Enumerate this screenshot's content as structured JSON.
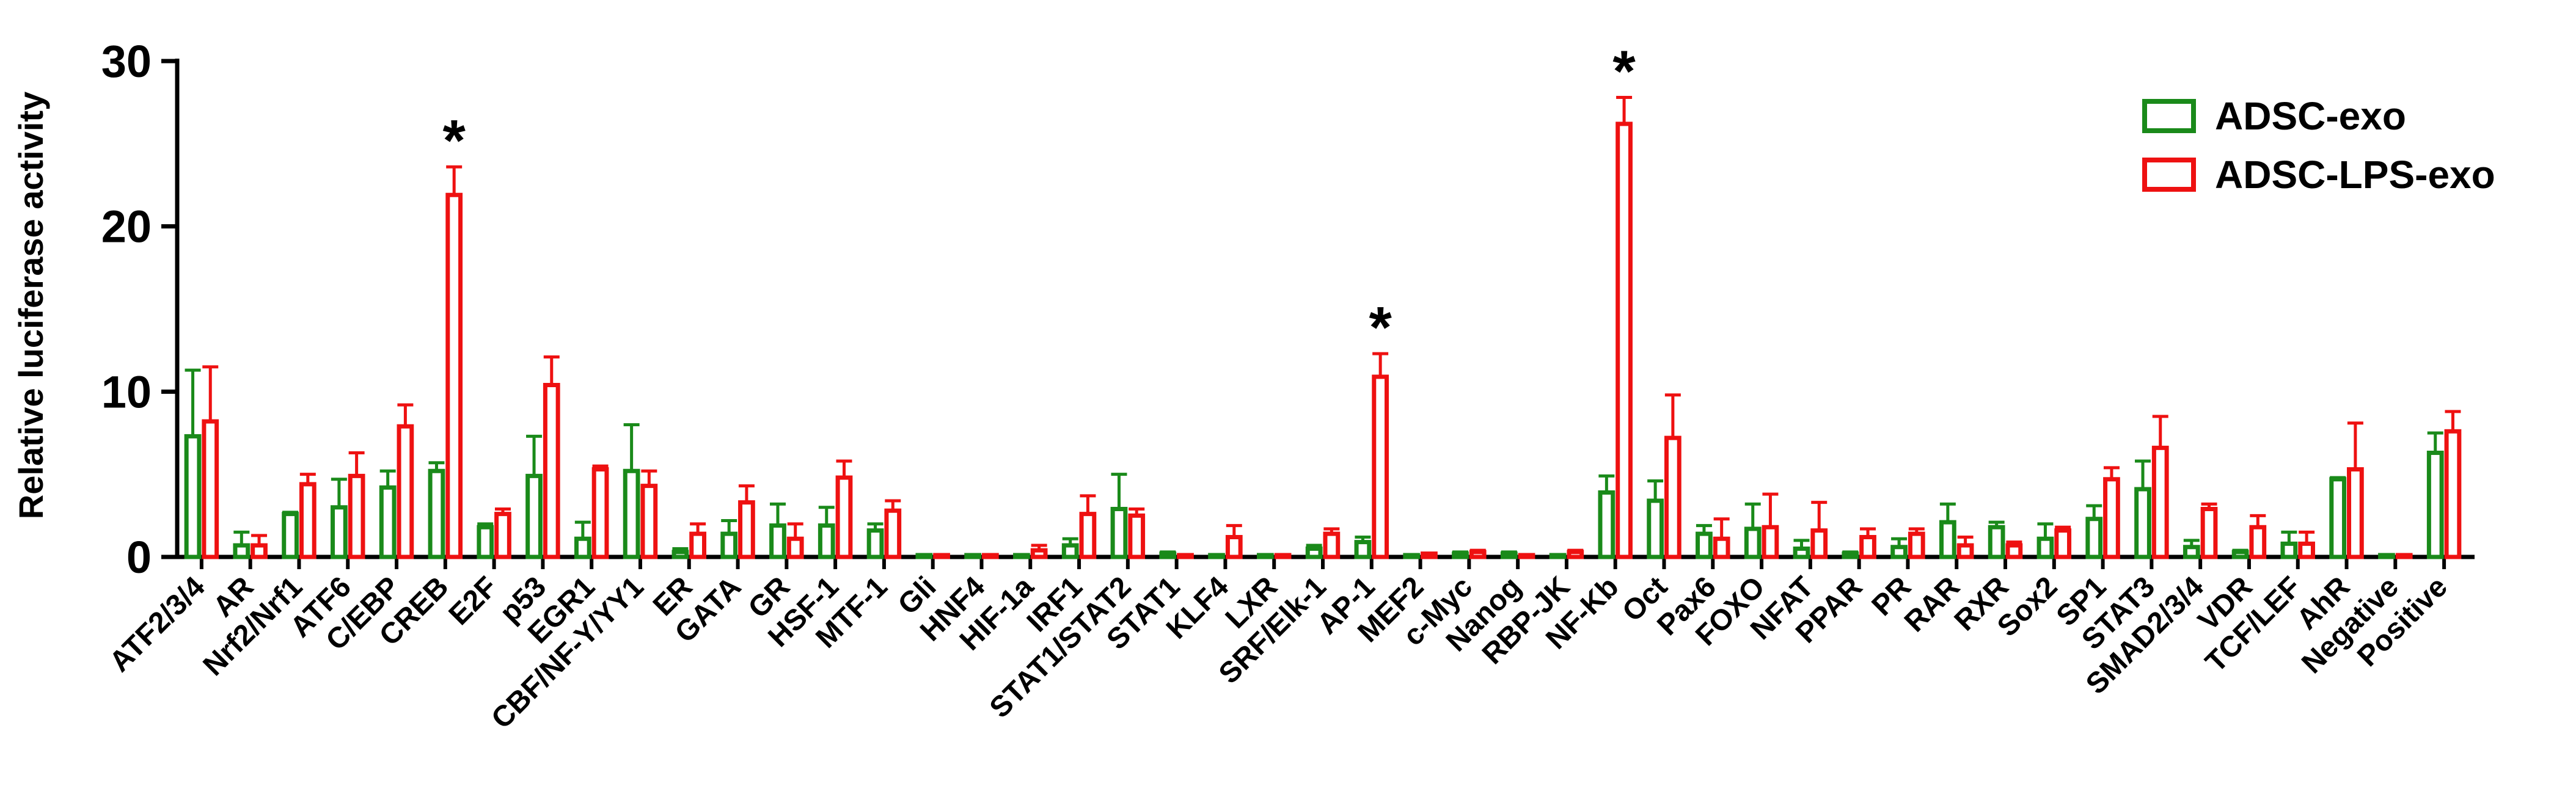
{
  "chart_data": {
    "type": "bar",
    "title": "",
    "xlabel": "",
    "ylabel": "Relative luciferase activity",
    "ylim": [
      0,
      30
    ],
    "yticks": [
      0,
      10,
      20,
      30
    ],
    "grid": false,
    "legend_position": "top-right",
    "categories": [
      "ATF2/3/4",
      "AR",
      "Nrf2/Nrf1",
      "ATF6",
      "C/EBP",
      "CREB",
      "E2F",
      "p53",
      "EGR1",
      "CBF/NF-Y/YY1",
      "ER",
      "GATA",
      "GR",
      "HSF-1",
      "MTF-1",
      "Gli",
      "HNF4",
      "HIF-1a",
      "IRF1",
      "STAT1/STAT2",
      "STAT1",
      "KLF4",
      "LXR",
      "SRF/Elk-1",
      "AP-1",
      "MEF2",
      "c-Myc",
      "Nanog",
      "RBP-JK",
      "NF-Kb",
      "Oct",
      "Pax6",
      "FOXO",
      "NFAT",
      "PPAR",
      "PR",
      "RAR",
      "RXR",
      "Sox2",
      "SP1",
      "STAT3",
      "SMAD2/3/4",
      "VDR",
      "TCF/LEF",
      "AhR",
      "Negative",
      "Positive"
    ],
    "series": [
      {
        "name": "ADSC-exo",
        "color": "#1a8a1a",
        "values": [
          7.3,
          0.7,
          2.6,
          3.0,
          4.2,
          5.2,
          1.8,
          4.9,
          1.1,
          5.2,
          0.3,
          1.4,
          1.9,
          1.9,
          1.6,
          0.1,
          0.1,
          0.1,
          0.7,
          2.9,
          0.2,
          0.1,
          0.1,
          0.5,
          0.9,
          0.1,
          0.2,
          0.2,
          0.1,
          3.9,
          3.4,
          1.4,
          1.7,
          0.5,
          0.2,
          0.6,
          2.1,
          1.8,
          1.1,
          2.3,
          4.1,
          0.6,
          0.3,
          0.8,
          4.7,
          0.1,
          6.3
        ],
        "errors": [
          4.0,
          0.8,
          0.1,
          1.7,
          1.0,
          0.5,
          0.2,
          2.4,
          1.0,
          2.8,
          0.2,
          0.8,
          1.3,
          1.1,
          0.4,
          0.0,
          0.0,
          0.0,
          0.4,
          2.1,
          0.1,
          0.0,
          0.0,
          0.2,
          0.3,
          0.0,
          0.1,
          0.1,
          0.0,
          1.0,
          1.2,
          0.5,
          1.5,
          0.5,
          0.1,
          0.5,
          1.1,
          0.3,
          0.9,
          0.8,
          1.7,
          0.4,
          0.1,
          0.7,
          0.1,
          0.0,
          1.2
        ]
      },
      {
        "name": "ADSC-LPS-exo",
        "color": "#ee1111",
        "values": [
          8.2,
          0.7,
          4.4,
          4.9,
          7.9,
          21.9,
          2.6,
          10.4,
          5.3,
          4.3,
          1.4,
          3.3,
          1.1,
          4.8,
          2.8,
          0.1,
          0.1,
          0.4,
          2.6,
          2.5,
          0.1,
          1.2,
          0.1,
          1.4,
          10.9,
          0.2,
          0.3,
          0.1,
          0.3,
          26.2,
          7.2,
          1.1,
          1.8,
          1.6,
          1.2,
          1.4,
          0.7,
          0.7,
          1.6,
          4.7,
          6.6,
          2.9,
          1.8,
          0.8,
          5.3,
          0.1,
          7.6
        ],
        "errors": [
          3.3,
          0.6,
          0.6,
          1.4,
          1.3,
          1.7,
          0.3,
          1.7,
          0.2,
          0.9,
          0.6,
          1.0,
          0.9,
          1.0,
          0.6,
          0.0,
          0.0,
          0.3,
          1.1,
          0.4,
          0.0,
          0.7,
          0.0,
          0.3,
          1.4,
          0.0,
          0.1,
          0.0,
          0.1,
          1.6,
          2.6,
          1.2,
          2.0,
          1.7,
          0.5,
          0.3,
          0.5,
          0.2,
          0.2,
          0.7,
          1.9,
          0.3,
          0.7,
          0.7,
          2.8,
          0.0,
          1.2
        ]
      }
    ],
    "annotations": [
      {
        "category": "CREB",
        "series": "ADSC-LPS-exo",
        "text": "*"
      },
      {
        "category": "AP-1",
        "series": "ADSC-LPS-exo",
        "text": "*"
      },
      {
        "category": "NF-Kb",
        "series": "ADSC-LPS-exo",
        "text": "*"
      }
    ]
  }
}
